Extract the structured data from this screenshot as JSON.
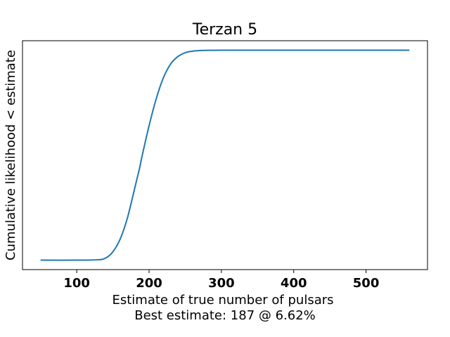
{
  "chart_data": {
    "type": "line",
    "title": "Terzan 5",
    "xlabel": "Estimate of true number of pulsars",
    "xlabel_sub": "Best estimate: 187 @ 6.62%",
    "ylabel": "Cumulative likelihood < estimate",
    "xlim": [
      25,
      585
    ],
    "ylim": [
      -0.045,
      1.045
    ],
    "x_ticks": [
      100,
      200,
      300,
      400,
      500
    ],
    "y_ticks_shown": false,
    "grid": false,
    "line_color": "#1f77b4",
    "series": [
      {
        "x": [
          50,
          100,
          130,
          140,
          150,
          160,
          170,
          180,
          187,
          190,
          200,
          210,
          220,
          230,
          240,
          250,
          260,
          270,
          280,
          300,
          350,
          400,
          450,
          500,
          560
        ],
        "y": [
          0.0,
          0.0,
          0.002,
          0.01,
          0.04,
          0.1,
          0.2,
          0.34,
          0.44,
          0.49,
          0.64,
          0.77,
          0.87,
          0.935,
          0.97,
          0.988,
          0.995,
          0.998,
          0.999,
          1.0,
          1.0,
          1.0,
          1.0,
          1.0,
          1.0
        ]
      }
    ]
  }
}
